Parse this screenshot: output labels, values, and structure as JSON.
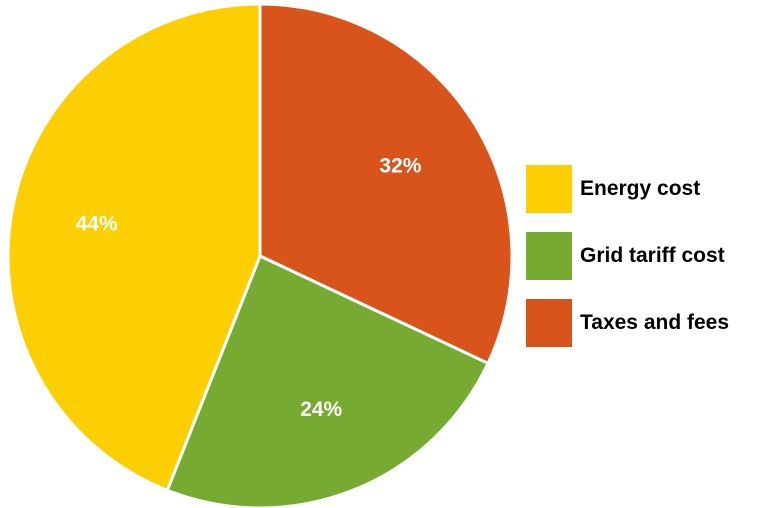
{
  "chart_data": {
    "type": "pie",
    "start_angle_deg": 0,
    "direction": "clockwise",
    "slices": [
      {
        "name": "Taxes and fees",
        "value": 32,
        "label": "32%",
        "color": "#D9541A"
      },
      {
        "name": "Grid tariff cost",
        "value": 24,
        "label": "24%",
        "color": "#76AA31"
      },
      {
        "name": "Energy cost",
        "value": 44,
        "label": "44%",
        "color": "#FCCF03"
      }
    ],
    "legend": {
      "placement": "right",
      "items": [
        {
          "label": "Energy cost",
          "color": "#FCCF03"
        },
        {
          "label": "Grid tariff cost",
          "color": "#76AA31"
        },
        {
          "label": "Taxes and fees",
          "color": "#D9541A"
        }
      ]
    }
  }
}
